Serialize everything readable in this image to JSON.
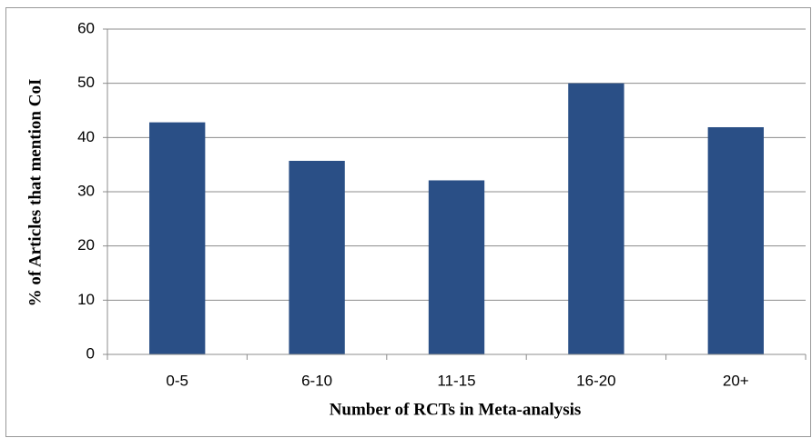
{
  "chart_data": {
    "type": "bar",
    "categories": [
      "0-5",
      "6-10",
      "11-15",
      "16-20",
      "20+"
    ],
    "values": [
      42.8,
      35.7,
      32.1,
      50,
      41.9
    ],
    "color": "#2a4f86",
    "ylim": [
      0,
      60
    ],
    "yticks": [
      0,
      10,
      20,
      30,
      40,
      50,
      60
    ],
    "grid": true,
    "xlabel": "Number of RCTs in Meta-analysis",
    "ylabel": "% of Articles that mention CoI"
  }
}
